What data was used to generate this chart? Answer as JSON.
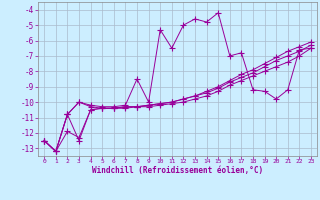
{
  "xlabel": "Windchill (Refroidissement éolien,°C)",
  "bg_color": "#cceeff",
  "line_color": "#990099",
  "grid_color": "#aabbcc",
  "xlim": [
    -0.5,
    23.5
  ],
  "ylim": [
    -13.5,
    -3.5
  ],
  "yticks": [
    -13,
    -12,
    -11,
    -10,
    -9,
    -8,
    -7,
    -6,
    -5,
    -4
  ],
  "xticks": [
    0,
    1,
    2,
    3,
    4,
    5,
    6,
    7,
    8,
    9,
    10,
    11,
    12,
    13,
    14,
    15,
    16,
    17,
    18,
    19,
    20,
    21,
    22,
    23
  ],
  "series": [
    {
      "x": [
        0,
        1,
        2,
        3,
        4,
        5,
        6,
        7,
        8,
        9,
        10,
        11,
        12,
        13,
        14,
        15,
        16,
        17,
        18,
        19,
        20,
        21,
        22,
        23
      ],
      "y": [
        -12.5,
        -13.2,
        -10.8,
        -10.0,
        -10.2,
        -10.3,
        -10.3,
        -10.2,
        -8.5,
        -10.0,
        -5.3,
        -6.5,
        -5.0,
        -4.6,
        -4.8,
        -4.2,
        -7.0,
        -6.8,
        -9.2,
        -9.3,
        -9.8,
        -9.2,
        -6.6,
        -6.5
      ]
    },
    {
      "x": [
        0,
        1,
        2,
        3,
        4,
        5,
        6,
        7,
        8,
        9,
        10,
        11,
        12,
        13,
        14,
        15,
        16,
        17,
        18,
        19,
        20,
        21,
        22,
        23
      ],
      "y": [
        -12.5,
        -13.2,
        -10.8,
        -10.0,
        -10.3,
        -10.4,
        -10.4,
        -10.4,
        -10.3,
        -10.3,
        -10.2,
        -10.1,
        -10.0,
        -9.8,
        -9.6,
        -9.3,
        -8.9,
        -8.6,
        -8.3,
        -8.0,
        -7.7,
        -7.4,
        -7.0,
        -6.5
      ]
    },
    {
      "x": [
        0,
        1,
        2,
        3,
        4,
        5,
        6,
        7,
        8,
        9,
        10,
        11,
        12,
        13,
        14,
        15,
        16,
        17,
        18,
        19,
        20,
        21,
        22,
        23
      ],
      "y": [
        -12.5,
        -13.2,
        -11.9,
        -12.3,
        -10.5,
        -10.4,
        -10.4,
        -10.3,
        -10.3,
        -10.2,
        -10.1,
        -10.0,
        -9.8,
        -9.6,
        -9.4,
        -9.1,
        -8.7,
        -8.4,
        -8.1,
        -7.7,
        -7.3,
        -7.0,
        -6.7,
        -6.3
      ]
    },
    {
      "x": [
        0,
        1,
        2,
        3,
        4,
        5,
        6,
        7,
        8,
        9,
        10,
        11,
        12,
        13,
        14,
        15,
        16,
        17,
        18,
        19,
        20,
        21,
        22,
        23
      ],
      "y": [
        -12.5,
        -13.2,
        -10.8,
        -12.5,
        -10.5,
        -10.4,
        -10.4,
        -10.3,
        -10.3,
        -10.2,
        -10.1,
        -10.0,
        -9.8,
        -9.6,
        -9.3,
        -9.0,
        -8.6,
        -8.2,
        -7.9,
        -7.5,
        -7.1,
        -6.7,
        -6.4,
        -6.1
      ]
    }
  ]
}
